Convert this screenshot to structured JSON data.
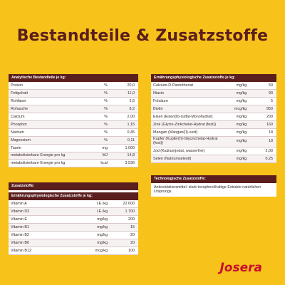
{
  "title": "Bestandteile & Zusatzstoffe",
  "colors": {
    "background": "#f7c21a",
    "header": "#5a1e1e",
    "logo": "#c8102e"
  },
  "analytic": {
    "heading": "Analytische Bestandteile je kg:",
    "rows": [
      {
        "name": "Protein",
        "unit": "%",
        "value": "20,0"
      },
      {
        "name": "Fettgehalt",
        "unit": "%",
        "value": "11,0"
      },
      {
        "name": "Rohfaser",
        "unit": "%",
        "value": "2,6"
      },
      {
        "name": "Rohasche",
        "unit": "%",
        "value": "8,2"
      },
      {
        "name": "Calcium",
        "unit": "%",
        "value": "2,00"
      },
      {
        "name": "Phosphor",
        "unit": "%",
        "value": "1,15"
      },
      {
        "name": "Natrium",
        "unit": "%",
        "value": "0,45"
      },
      {
        "name": "Magnesium",
        "unit": "%",
        "value": "0,11"
      },
      {
        "name": "Taurin",
        "unit": "mg",
        "value": "1.000"
      },
      {
        "name": "metabolisierbare Energie pro kg",
        "unit": "MJ",
        "value": "14,8"
      },
      {
        "name": "metabolisierbare Energie pro kg",
        "unit": "kcal",
        "value": "3.536"
      }
    ]
  },
  "additives": {
    "heading": "Zusatzstoffe:",
    "subheading": "Ernährungsphysiologische Zusatzstoffe je kg:",
    "rows": [
      {
        "name": "Vitamin A",
        "unit": "I.E./kg",
        "value": "22.600"
      },
      {
        "name": "Vitamin D3",
        "unit": "I.E./kg",
        "value": "1.700"
      },
      {
        "name": "Vitamin E",
        "unit": "mg/kg",
        "value": "200"
      },
      {
        "name": "Vitamin B1",
        "unit": "mg/kg",
        "value": "15"
      },
      {
        "name": "Vitamin B2",
        "unit": "mg/kg",
        "value": "20"
      },
      {
        "name": "Vitamin B6",
        "unit": "mg/kg",
        "value": "20"
      },
      {
        "name": "Vitamin B12",
        "unit": "mcg/kg",
        "value": "100"
      }
    ]
  },
  "nutritional": {
    "heading": "Ernährungsphysiologische Zusatzstoffe je kg:",
    "rows": [
      {
        "name": "Calcium-D-Pantothenat",
        "unit": "mg/kg",
        "value": "50"
      },
      {
        "name": "Niacin",
        "unit": "mg/kg",
        "value": "90"
      },
      {
        "name": "Folsäure",
        "unit": "mg/kg",
        "value": "5"
      },
      {
        "name": "Biotin",
        "unit": "mcg/kg",
        "value": "950"
      },
      {
        "name": "Eisen (Eisen(II)-sulfat-Monohydrat)",
        "unit": "mg/kg",
        "value": "200"
      },
      {
        "name": "Zink (Glycin-Zinkchelat-Hydrat (fest))",
        "unit": "mg/kg",
        "value": "160"
      },
      {
        "name": "Mangan (Mangan(II)-oxid)",
        "unit": "mg/kg",
        "value": "18"
      },
      {
        "name": "Kupfer (Kupfer(II)-Glycinchelat-Hydrat (fest))",
        "unit": "mg/kg",
        "value": "18"
      },
      {
        "name": "Jod (Kalziumjodat, wasserfrei)",
        "unit": "mg/kg",
        "value": "2,00"
      },
      {
        "name": "Selen (Natriumselenit)",
        "unit": "mg/kg",
        "value": "0,25"
      }
    ]
  },
  "technological": {
    "heading": "Technologische Zusatzstoffe:",
    "text": "Antioxidationsmittel: stark tocopherolhaltige Extrakte natürlichen Ursprungs."
  },
  "logo": "Josera"
}
